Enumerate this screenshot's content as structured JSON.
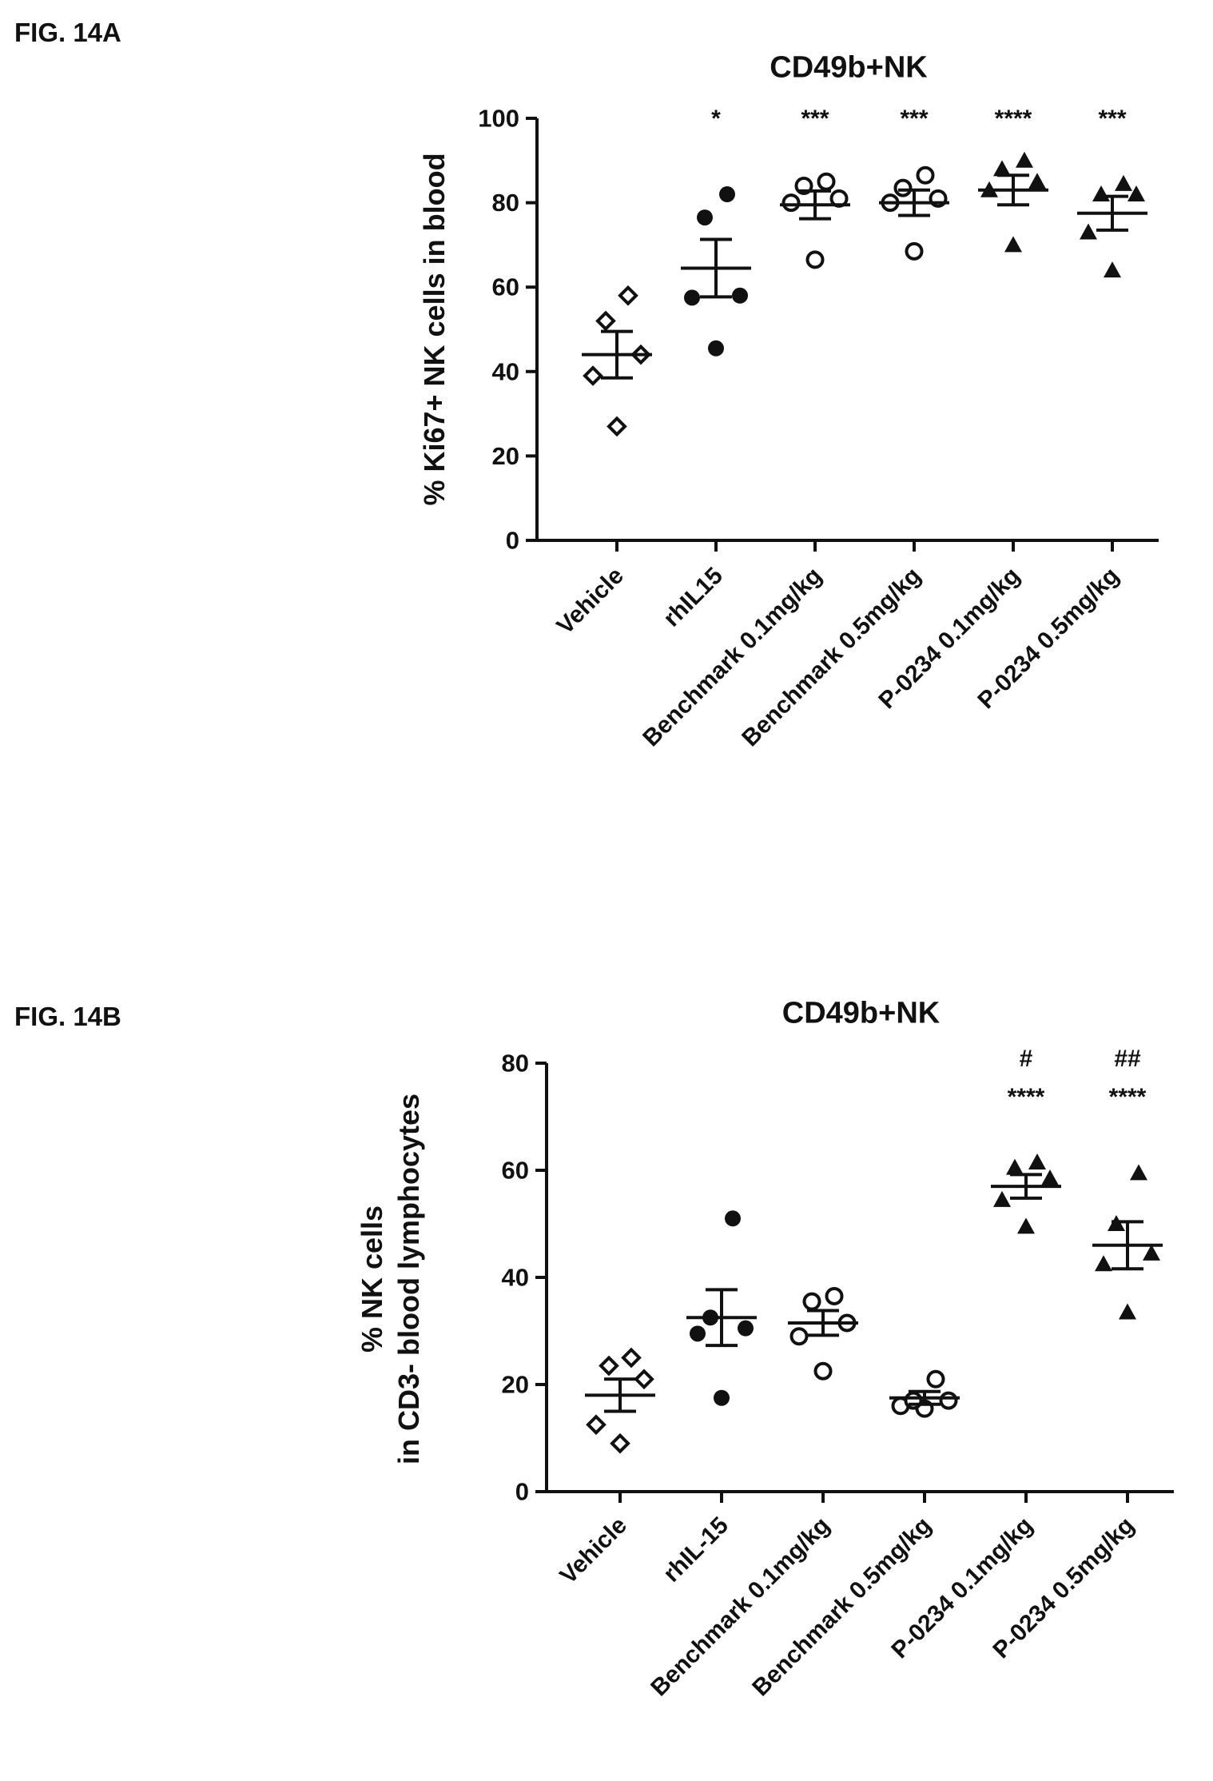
{
  "figures": [
    {
      "label": "FIG. 14A"
    },
    {
      "label": "FIG. 14B"
    }
  ],
  "chart_data": [
    {
      "type": "scatter",
      "title": "CD49b+NK",
      "xlabel": "",
      "ylabel": "% Ki67+ NK cells in blood",
      "ylim": [
        0,
        100
      ],
      "yticks": [
        0,
        20,
        40,
        60,
        80,
        100
      ],
      "categories": [
        "Vehicle",
        "rhIL15",
        "Benchmark 0.1mg/kg",
        "Benchmark 0.5mg/kg",
        "P-0234 0.1mg/kg",
        "P-0234 0.5mg/kg"
      ],
      "markers": [
        "diamond-open",
        "circle-filled",
        "circle-open",
        "circle-open",
        "triangle-filled",
        "triangle-filled"
      ],
      "annotations": [
        [],
        [
          "*"
        ],
        [
          "***"
        ],
        [
          "***"
        ],
        [
          "****"
        ],
        [
          "***"
        ]
      ],
      "groups": [
        {
          "values": [
            27,
            39,
            44,
            52,
            58
          ],
          "mean": 44,
          "sem": 5.5
        },
        {
          "values": [
            45.5,
            57.5,
            58,
            76.5,
            82
          ],
          "mean": 64.5,
          "sem": 6.8
        },
        {
          "values": [
            66.5,
            80,
            81,
            84,
            85
          ],
          "mean": 79.5,
          "sem": 3.3
        },
        {
          "values": [
            68.5,
            80,
            81,
            83.5,
            86.5
          ],
          "mean": 80,
          "sem": 3.0
        },
        {
          "values": [
            70,
            83,
            85,
            88,
            90
          ],
          "mean": 83,
          "sem": 3.5
        },
        {
          "values": [
            64,
            73,
            82,
            82,
            84.5
          ],
          "mean": 77.5,
          "sem": 4.0
        }
      ],
      "grid": false,
      "legend": "none"
    },
    {
      "type": "scatter",
      "title": "CD49b+NK",
      "xlabel": "",
      "ylabel": [
        "% NK cells",
        "in CD3- blood lymphocytes"
      ],
      "ylim": [
        0,
        80
      ],
      "yticks": [
        0,
        20,
        40,
        60,
        80
      ],
      "categories": [
        "Vehicle",
        "rhIL-15",
        "Benchmark 0.1mg/kg",
        "Benchmark 0.5mg/kg",
        "P-0234 0.1mg/kg",
        "P-0234 0.5mg/kg"
      ],
      "markers": [
        "diamond-open",
        "circle-filled",
        "circle-open",
        "circle-open",
        "triangle-filled",
        "triangle-filled"
      ],
      "annotations": [
        [],
        [],
        [],
        [],
        [
          "#",
          "****"
        ],
        [
          "##",
          "****"
        ]
      ],
      "groups": [
        {
          "values": [
            9,
            12.5,
            21,
            23.5,
            25
          ],
          "mean": 18,
          "sem": 3.0
        },
        {
          "values": [
            17.5,
            29.5,
            30.5,
            32.5,
            51
          ],
          "mean": 32.5,
          "sem": 5.2
        },
        {
          "values": [
            22.5,
            29,
            31.5,
            35.5,
            36.5
          ],
          "mean": 31.5,
          "sem": 2.3
        },
        {
          "values": [
            15.5,
            16,
            17,
            17,
            21
          ],
          "mean": 17.5,
          "sem": 1.2
        },
        {
          "values": [
            49.5,
            54.5,
            58.5,
            60.5,
            61.5
          ],
          "mean": 57,
          "sem": 2.2
        },
        {
          "values": [
            33.5,
            42.5,
            44.5,
            50,
            59.5
          ],
          "mean": 46,
          "sem": 4.4
        }
      ],
      "grid": false,
      "legend": "none"
    }
  ]
}
